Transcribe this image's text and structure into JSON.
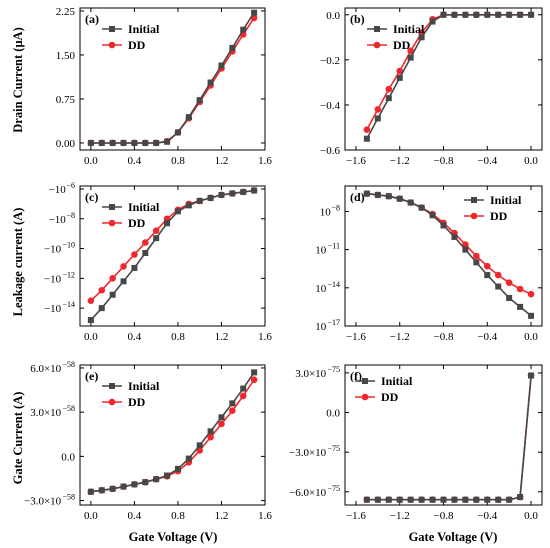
{
  "figure": {
    "ylabel_row1": "Drain Current (μA)",
    "ylabel_row2": "Leakage current (A)",
    "ylabel_row3": "Gate Current (A)",
    "xlabel": "Gate Voltage (V)"
  },
  "colors": {
    "initial": "#474747",
    "dd": "#f0282d"
  },
  "chart_data": [
    {
      "id": "a",
      "type": "line",
      "panel_label": "(a)",
      "ylabel": "Drain Current (μA)",
      "xlabel": "",
      "xlim": [
        -0.1,
        1.6
      ],
      "ylim": [
        -0.12,
        2.3
      ],
      "xticks": [
        0.0,
        0.4,
        0.8,
        1.2,
        1.6
      ],
      "xtick_labels": [
        "0.0",
        "0.4",
        "0.8",
        "1.2",
        "1.6"
      ],
      "yticks": [
        0.0,
        0.75,
        1.5,
        2.25
      ],
      "ytick_labels": [
        "0.00",
        "0.75",
        "1.50",
        "2.25"
      ],
      "legend": "top-left",
      "series": [
        {
          "name": "Initial",
          "marker": "square",
          "x": [
            0.0,
            0.1,
            0.2,
            0.3,
            0.4,
            0.5,
            0.6,
            0.7,
            0.8,
            0.9,
            1.0,
            1.1,
            1.2,
            1.3,
            1.4,
            1.5
          ],
          "y": [
            0.0,
            0.0,
            0.0,
            0.0,
            0.0,
            0.0,
            0.0,
            0.02,
            0.18,
            0.44,
            0.73,
            1.03,
            1.32,
            1.62,
            1.93,
            2.22
          ]
        },
        {
          "name": "DD",
          "marker": "circle",
          "x": [
            0.0,
            0.1,
            0.2,
            0.3,
            0.4,
            0.5,
            0.6,
            0.7,
            0.8,
            0.9,
            1.0,
            1.1,
            1.2,
            1.3,
            1.4,
            1.5
          ],
          "y": [
            0.0,
            0.0,
            0.0,
            0.0,
            0.0,
            0.0,
            0.0,
            0.03,
            0.18,
            0.42,
            0.7,
            0.98,
            1.27,
            1.56,
            1.85,
            2.13
          ]
        }
      ]
    },
    {
      "id": "b",
      "type": "line",
      "panel_label": "(b)",
      "ylabel": "",
      "xlabel": "",
      "xlim": [
        -1.7,
        0.1
      ],
      "ylim": [
        -0.6,
        0.03
      ],
      "xticks": [
        -1.6,
        -1.2,
        -0.8,
        -0.4,
        0.0
      ],
      "xtick_labels": [
        "−1.6",
        "−1.2",
        "−0.8",
        "−0.4",
        "0.0"
      ],
      "yticks": [
        -0.6,
        -0.4,
        -0.2,
        0.0
      ],
      "ytick_labels": [
        "−0.6",
        "−0.4",
        "−0.2",
        "0.0"
      ],
      "legend": "top-left",
      "series": [
        {
          "name": "Initial",
          "marker": "square",
          "x": [
            -1.5,
            -1.4,
            -1.3,
            -1.2,
            -1.1,
            -1.0,
            -0.9,
            -0.8,
            -0.7,
            -0.6,
            -0.5,
            -0.4,
            -0.3,
            -0.2,
            -0.1,
            0.0
          ],
          "y": [
            -0.55,
            -0.46,
            -0.37,
            -0.28,
            -0.19,
            -0.1,
            -0.03,
            0.0,
            0.0,
            0.0,
            0.0,
            0.0,
            0.0,
            0.0,
            0.0,
            0.0
          ]
        },
        {
          "name": "DD",
          "marker": "circle",
          "x": [
            -1.5,
            -1.4,
            -1.3,
            -1.2,
            -1.1,
            -1.0,
            -0.9,
            -0.8,
            -0.7,
            -0.6,
            -0.5,
            -0.4,
            -0.3,
            -0.2,
            -0.1,
            0.0
          ],
          "y": [
            -0.51,
            -0.42,
            -0.33,
            -0.25,
            -0.16,
            -0.08,
            -0.02,
            0.0,
            0.0,
            0.0,
            0.0,
            0.0,
            0.0,
            0.0,
            0.0,
            0.0
          ]
        }
      ]
    },
    {
      "id": "c",
      "type": "line",
      "panel_label": "(c)",
      "ylabel": "Leakage current (A)",
      "xlabel": "",
      "xlim": [
        -0.1,
        1.6
      ],
      "ylim": [
        -15.2,
        -5.8
      ],
      "xticks": [
        0.0,
        0.4,
        0.8,
        1.2,
        1.6
      ],
      "xtick_labels": [
        "0.0",
        "0.4",
        "0.8",
        "1.2",
        "1.6"
      ],
      "yticks": [
        -14,
        -12,
        -10,
        -8,
        -6
      ],
      "ytick_labels": [
        "−10",
        "−10",
        "−10",
        "−10",
        "−10"
      ],
      "ytick_exponents": [
        "−14",
        "−12",
        "−10",
        "−8",
        "−6"
      ],
      "legend": "top-left",
      "series": [
        {
          "name": "Initial",
          "marker": "square",
          "x": [
            0.0,
            0.1,
            0.2,
            0.3,
            0.4,
            0.5,
            0.6,
            0.7,
            0.8,
            0.9,
            1.0,
            1.1,
            1.2,
            1.3,
            1.4,
            1.5
          ],
          "y": [
            -14.8,
            -14.0,
            -13.1,
            -12.2,
            -11.3,
            -10.3,
            -9.3,
            -8.3,
            -7.5,
            -7.1,
            -6.8,
            -6.6,
            -6.4,
            -6.3,
            -6.2,
            -6.1
          ]
        },
        {
          "name": "DD",
          "marker": "circle",
          "x": [
            0.0,
            0.1,
            0.2,
            0.3,
            0.4,
            0.5,
            0.6,
            0.7,
            0.8,
            0.9,
            1.0,
            1.1,
            1.2,
            1.3,
            1.4,
            1.5
          ],
          "y": [
            -13.5,
            -12.8,
            -12.0,
            -11.2,
            -10.4,
            -9.6,
            -8.8,
            -8.0,
            -7.4,
            -7.0,
            -6.8,
            -6.6,
            -6.4,
            -6.3,
            -6.2,
            -6.1
          ]
        }
      ]
    },
    {
      "id": "d",
      "type": "line",
      "panel_label": "(d)",
      "ylabel": "",
      "xlabel": "",
      "xlim": [
        -1.7,
        0.1
      ],
      "ylim": [
        -17,
        -6
      ],
      "xticks": [
        -1.6,
        -1.2,
        -0.8,
        -0.4,
        0.0
      ],
      "xtick_labels": [
        "−1.6",
        "−1.2",
        "−0.8",
        "−0.4",
        "0.0"
      ],
      "yticks": [
        -8,
        -11,
        -14,
        -17
      ],
      "ytick_labels": [
        "10",
        "10",
        "10",
        "10"
      ],
      "ytick_exponents": [
        "−8",
        "−11",
        "−14",
        "−17"
      ],
      "legend": "top-right",
      "series": [
        {
          "name": "Initial",
          "marker": "square",
          "x": [
            -1.5,
            -1.4,
            -1.3,
            -1.2,
            -1.1,
            -1.0,
            -0.9,
            -0.8,
            -0.7,
            -0.6,
            -0.5,
            -0.4,
            -0.3,
            -0.2,
            -0.1,
            0.0
          ],
          "y": [
            -6.6,
            -6.7,
            -6.8,
            -7.0,
            -7.3,
            -7.7,
            -8.3,
            -9.1,
            -10.0,
            -11.0,
            -12.0,
            -13.0,
            -13.9,
            -14.8,
            -15.5,
            -16.2
          ]
        },
        {
          "name": "DD",
          "marker": "circle",
          "x": [
            -1.5,
            -1.4,
            -1.3,
            -1.2,
            -1.1,
            -1.0,
            -0.9,
            -0.8,
            -0.7,
            -0.6,
            -0.5,
            -0.4,
            -0.3,
            -0.2,
            -0.1,
            0.0
          ],
          "y": [
            -6.6,
            -6.7,
            -6.8,
            -7.0,
            -7.3,
            -7.7,
            -8.2,
            -8.9,
            -9.7,
            -10.6,
            -11.5,
            -12.3,
            -13.0,
            -13.6,
            -14.1,
            -14.5
          ]
        }
      ]
    },
    {
      "id": "e",
      "type": "line",
      "panel_label": "(e)",
      "ylabel": "Gate Current (A)",
      "xlabel": "Gate Voltage (V)",
      "xlim": [
        -0.1,
        1.6
      ],
      "ylim": [
        -3.3,
        6.2
      ],
      "xticks": [
        0.0,
        0.4,
        0.8,
        1.2,
        1.6
      ],
      "xtick_labels": [
        "0.0",
        "0.4",
        "0.8",
        "1.2",
        "1.6"
      ],
      "yticks": [
        -3.0,
        0.0,
        3.0,
        6.0
      ],
      "ytick_labels": [
        "−3.0×10",
        "0.0",
        "3.0×10",
        "6.0×10"
      ],
      "ytick_exponents": [
        "−58",
        "",
        "−58",
        "−58"
      ],
      "legend": "top-left",
      "series": [
        {
          "name": "Initial",
          "marker": "square",
          "x": [
            0.0,
            0.1,
            0.2,
            0.3,
            0.4,
            0.5,
            0.6,
            0.7,
            0.8,
            0.9,
            1.0,
            1.1,
            1.2,
            1.3,
            1.4,
            1.5
          ],
          "y": [
            -2.4,
            -2.3,
            -2.2,
            -2.05,
            -1.9,
            -1.75,
            -1.55,
            -1.3,
            -0.85,
            -0.15,
            0.75,
            1.7,
            2.65,
            3.6,
            4.6,
            5.7
          ]
        },
        {
          "name": "DD",
          "marker": "circle",
          "x": [
            0.0,
            0.1,
            0.2,
            0.3,
            0.4,
            0.5,
            0.6,
            0.7,
            0.8,
            0.9,
            1.0,
            1.1,
            1.2,
            1.3,
            1.4,
            1.5
          ],
          "y": [
            -2.4,
            -2.3,
            -2.2,
            -2.05,
            -1.9,
            -1.75,
            -1.55,
            -1.35,
            -1.0,
            -0.4,
            0.4,
            1.3,
            2.2,
            3.1,
            4.1,
            5.2
          ]
        }
      ]
    },
    {
      "id": "f",
      "type": "line",
      "panel_label": "(f)",
      "ylabel": "",
      "xlabel": "Gate Voltage (V)",
      "xlim": [
        -1.7,
        0.1
      ],
      "ylim": [
        -7.0,
        3.6
      ],
      "xticks": [
        -1.6,
        -1.2,
        -0.8,
        -0.4,
        0.0
      ],
      "xtick_labels": [
        "−1.6",
        "−1.2",
        "−0.8",
        "−0.4",
        "0.0"
      ],
      "yticks": [
        -6.0,
        -3.0,
        0.0,
        3.0
      ],
      "ytick_labels": [
        "−6.0×10",
        "−3.0×10",
        "0.0",
        "3.0×10"
      ],
      "ytick_exponents": [
        "−75",
        "−75",
        "",
        "−75"
      ],
      "legend": "top-left",
      "series": [
        {
          "name": "Initial",
          "marker": "square",
          "x": [
            -1.5,
            -1.4,
            -1.3,
            -1.2,
            -1.1,
            -1.0,
            -0.9,
            -0.8,
            -0.7,
            -0.6,
            -0.5,
            -0.4,
            -0.3,
            -0.2,
            -0.1,
            0.0
          ],
          "y": [
            -6.6,
            -6.6,
            -6.6,
            -6.6,
            -6.6,
            -6.6,
            -6.6,
            -6.6,
            -6.6,
            -6.6,
            -6.6,
            -6.6,
            -6.6,
            -6.6,
            -6.4,
            2.8
          ]
        },
        {
          "name": "DD",
          "marker": "circle",
          "x": [
            -1.5,
            -1.4,
            -1.3,
            -1.2,
            -1.1,
            -1.0,
            -0.9,
            -0.8,
            -0.7,
            -0.6,
            -0.5,
            -0.4,
            -0.3,
            -0.2,
            -0.1,
            0.0
          ],
          "y": [
            -6.6,
            -6.6,
            -6.6,
            -6.6,
            -6.6,
            -6.6,
            -6.6,
            -6.6,
            -6.6,
            -6.6,
            -6.6,
            -6.6,
            -6.6,
            -6.6,
            -6.4,
            2.8
          ]
        }
      ]
    }
  ]
}
